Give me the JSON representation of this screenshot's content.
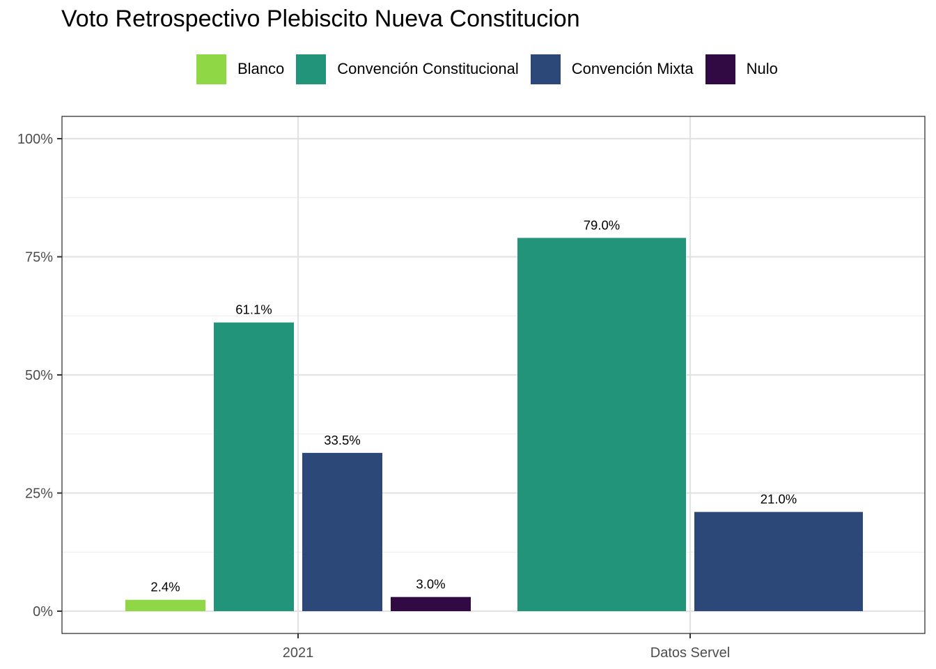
{
  "chart_data": {
    "type": "bar",
    "title": "Voto Retrospectivo Plebiscito Nueva Constitucion",
    "xlabel": "",
    "ylabel": "",
    "categories": [
      "2021",
      "Datos Servel"
    ],
    "series": [
      {
        "name": "Blanco",
        "color": "#8fd744",
        "values": [
          2.4,
          null
        ],
        "labels": [
          "2.4%",
          null
        ]
      },
      {
        "name": "Convención Constitucional",
        "color": "#21947a",
        "values": [
          61.1,
          79.0
        ],
        "labels": [
          "61.1%",
          "79.0%"
        ]
      },
      {
        "name": "Convención Mixta",
        "color": "#2b4879",
        "values": [
          33.5,
          21.0
        ],
        "labels": [
          "33.5%",
          "21.0%"
        ]
      },
      {
        "name": "Nulo",
        "color": "#320a43",
        "values": [
          3.0,
          null
        ],
        "labels": [
          "3.0%",
          null
        ]
      }
    ],
    "ylim": [
      0,
      100
    ],
    "yticks": [
      0,
      25,
      50,
      75,
      100
    ],
    "ytick_labels": [
      "0%",
      "25%",
      "50%",
      "75%",
      "100%"
    ],
    "legend_position": "top",
    "grid": true
  }
}
